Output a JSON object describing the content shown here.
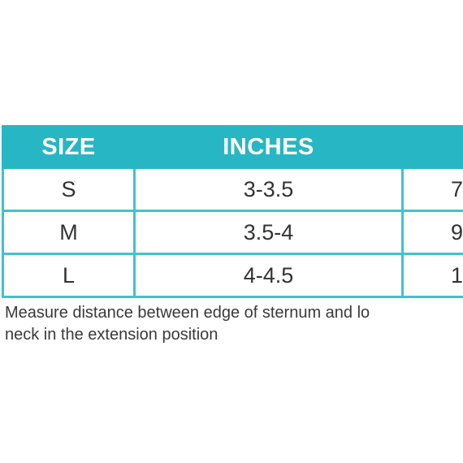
{
  "table": {
    "headers": [
      "SIZE",
      "INCHES",
      ""
    ],
    "rows": [
      {
        "size": "S",
        "inches": "3-3.5",
        "cm": "7"
      },
      {
        "size": "M",
        "inches": "3.5-4",
        "cm": "9"
      },
      {
        "size": "L",
        "inches": "4-4.5",
        "cm": "1"
      }
    ]
  },
  "note": {
    "line1": "Measure distance between edge of sternum and lo",
    "line2": "neck in the extension position"
  },
  "colors": {
    "header_bg": "#27b6c4",
    "border": "#3fc3ce",
    "text": "#333333"
  }
}
